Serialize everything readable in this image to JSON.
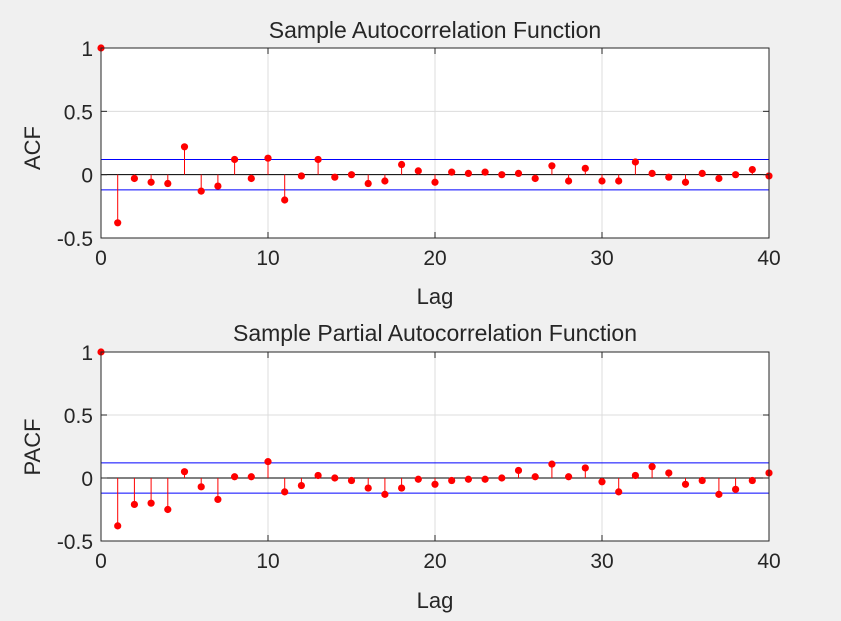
{
  "colors": {
    "stem": "#ff0000",
    "marker": "#ff0000",
    "bounds": "#0000ff",
    "axes_bg": "#ffffff",
    "figure_bg": "#f0f0f0",
    "grid": "#dcdcdc"
  },
  "chart_data": [
    {
      "type": "stem",
      "title": "Sample Autocorrelation Function",
      "xlabel": "Lag",
      "ylabel": "ACF",
      "xlim": [
        0,
        40
      ],
      "ylim": [
        -0.5,
        1
      ],
      "xticks": [
        0,
        10,
        20,
        30,
        40
      ],
      "xtick_labels": [
        "0",
        "10",
        "20",
        "30",
        "40"
      ],
      "yticks": [
        1,
        0.5,
        0,
        -0.5
      ],
      "ytick_labels": [
        "1",
        "0.5",
        "0",
        "-0.5"
      ],
      "grid": true,
      "bounds": [
        0.12,
        -0.12
      ],
      "lags": [
        0,
        1,
        2,
        3,
        4,
        5,
        6,
        7,
        8,
        9,
        10,
        11,
        12,
        13,
        14,
        15,
        16,
        17,
        18,
        19,
        20,
        21,
        22,
        23,
        24,
        25,
        26,
        27,
        28,
        29,
        30,
        31,
        32,
        33,
        34,
        35,
        36,
        37,
        38,
        39,
        40
      ],
      "values": [
        1,
        -0.38,
        -0.03,
        -0.06,
        -0.07,
        0.22,
        -0.13,
        -0.09,
        0.12,
        -0.03,
        0.13,
        -0.2,
        -0.01,
        0.12,
        -0.02,
        0.0,
        -0.07,
        -0.05,
        0.08,
        0.03,
        -0.06,
        0.02,
        0.01,
        0.02,
        0.0,
        0.01,
        -0.03,
        0.07,
        -0.05,
        0.05,
        -0.05,
        -0.05,
        0.1,
        0.01,
        -0.02,
        -0.06,
        0.01,
        -0.03,
        0.0,
        0.04,
        -0.01
      ]
    },
    {
      "type": "stem",
      "title": "Sample Partial Autocorrelation Function",
      "xlabel": "Lag",
      "ylabel": "PACF",
      "xlim": [
        0,
        40
      ],
      "ylim": [
        -0.5,
        1
      ],
      "xticks": [
        0,
        10,
        20,
        30,
        40
      ],
      "xtick_labels": [
        "0",
        "10",
        "20",
        "30",
        "40"
      ],
      "yticks": [
        1,
        0.5,
        0,
        -0.5
      ],
      "ytick_labels": [
        "1",
        "0.5",
        "0",
        "-0.5"
      ],
      "grid": true,
      "bounds": [
        0.12,
        -0.12
      ],
      "lags": [
        0,
        1,
        2,
        3,
        4,
        5,
        6,
        7,
        8,
        9,
        10,
        11,
        12,
        13,
        14,
        15,
        16,
        17,
        18,
        19,
        20,
        21,
        22,
        23,
        24,
        25,
        26,
        27,
        28,
        29,
        30,
        31,
        32,
        33,
        34,
        35,
        36,
        37,
        38,
        39,
        40
      ],
      "values": [
        1,
        -0.38,
        -0.21,
        -0.2,
        -0.25,
        0.05,
        -0.07,
        -0.17,
        0.01,
        0.01,
        0.13,
        -0.11,
        -0.06,
        0.02,
        0.0,
        -0.02,
        -0.08,
        -0.13,
        -0.08,
        -0.01,
        -0.05,
        -0.02,
        -0.01,
        -0.01,
        0.0,
        0.06,
        0.01,
        0.11,
        0.01,
        0.08,
        -0.03,
        -0.11,
        0.02,
        0.09,
        0.04,
        -0.05,
        -0.02,
        -0.13,
        -0.09,
        -0.02,
        0.04
      ]
    }
  ]
}
